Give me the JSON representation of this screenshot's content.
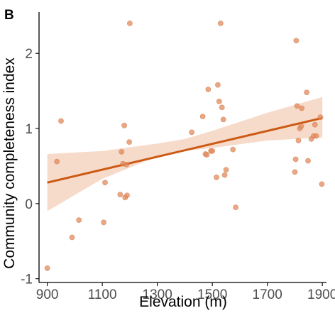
{
  "panel_label": "B",
  "colors": {
    "point": "#e28a5a",
    "line": "#cc5a15",
    "band": "#f4cfb8",
    "axis": "#000000"
  },
  "chart_data": {
    "type": "scatter",
    "xlabel": "Elevation (m)",
    "ylabel": "Community completeness index",
    "xlim": [
      870,
      1915
    ],
    "ylim": [
      -1.05,
      2.55
    ],
    "xticks": [
      900,
      1100,
      1300,
      1500,
      1700,
      1900
    ],
    "xtick_labels": [
      "900",
      "1100",
      "1300",
      "1500",
      "1700",
      "1900"
    ],
    "yticks": [
      -1,
      0,
      1,
      2
    ],
    "ytick_labels": [
      "-1",
      "0",
      "1",
      "2"
    ],
    "grid": false,
    "legend": "none",
    "points": [
      [
        900,
        -0.86
      ],
      [
        935,
        0.56
      ],
      [
        950,
        1.1
      ],
      [
        990,
        -0.45
      ],
      [
        1015,
        -0.22
      ],
      [
        1105,
        -0.25
      ],
      [
        1110,
        0.28
      ],
      [
        1165,
        0.12
      ],
      [
        1170,
        0.69
      ],
      [
        1175,
        0.53
      ],
      [
        1180,
        1.04
      ],
      [
        1183,
        0.08
      ],
      [
        1188,
        0.52
      ],
      [
        1190,
        0.11
      ],
      [
        1198,
        0.82
      ],
      [
        1200,
        2.4
      ],
      [
        1425,
        0.95
      ],
      [
        1465,
        1.16
      ],
      [
        1475,
        0.66
      ],
      [
        1480,
        0.65
      ],
      [
        1485,
        1.52
      ],
      [
        1495,
        0.7
      ],
      [
        1500,
        0.7
      ],
      [
        1515,
        0.35
      ],
      [
        1520,
        1.58
      ],
      [
        1525,
        1.36
      ],
      [
        1530,
        2.4
      ],
      [
        1535,
        1.28
      ],
      [
        1540,
        1.12
      ],
      [
        1545,
        0.38
      ],
      [
        1550,
        0.45
      ],
      [
        1575,
        0.72
      ],
      [
        1585,
        -0.05
      ],
      [
        1800,
        0.42
      ],
      [
        1803,
        0.59
      ],
      [
        1805,
        2.17
      ],
      [
        1808,
        1.3
      ],
      [
        1813,
        0.84
      ],
      [
        1818,
        1.0
      ],
      [
        1823,
        1.03
      ],
      [
        1825,
        1.27
      ],
      [
        1843,
        1.48
      ],
      [
        1848,
        0.57
      ],
      [
        1860,
        0.86
      ],
      [
        1868,
        0.9
      ],
      [
        1873,
        1.05
      ],
      [
        1878,
        0.9
      ],
      [
        1893,
        1.15
      ],
      [
        1898,
        0.26
      ]
    ],
    "fit": {
      "x": [
        900,
        1900
      ],
      "y": [
        0.28,
        1.14
      ]
    },
    "ci_band": {
      "x": [
        900,
        1100,
        1300,
        1400,
        1500,
        1700,
        1900
      ],
      "lower": [
        -0.1,
        0.33,
        0.63,
        0.7,
        0.74,
        0.84,
        0.88
      ],
      "upper": [
        0.66,
        0.7,
        0.8,
        0.86,
        0.97,
        1.21,
        1.42
      ]
    }
  }
}
